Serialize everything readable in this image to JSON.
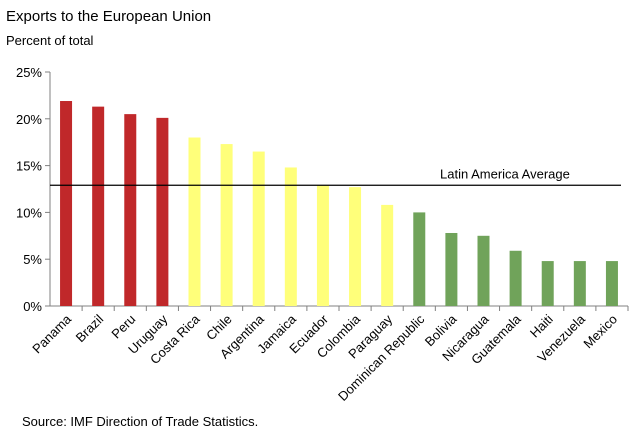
{
  "title": "Exports to the European Union",
  "subtitle": "Percent of total",
  "source": "Source:  IMF Direction of Trade Statistics.",
  "colors": {
    "red": "#c0282a",
    "yellow": "#ffff7a",
    "green": "#70a35a"
  },
  "chart_data": {
    "type": "bar",
    "title": "Exports to the European Union",
    "ylabel": "Percent of total",
    "ylim": [
      0,
      25
    ],
    "yticks": [
      0,
      5,
      10,
      15,
      20,
      25
    ],
    "ytick_labels": [
      "0%",
      "5%",
      "10%",
      "15%",
      "20%",
      "25%"
    ],
    "grid": false,
    "categories": [
      "Panama",
      "Brazil",
      "Peru",
      "Uruguay",
      "Costa Rica",
      "Chile",
      "Argentina",
      "Jamaica",
      "Ecuador",
      "Colombia",
      "Paraguay",
      "Dominican Republic",
      "Bolivia",
      "Nicaragua",
      "Guatemala",
      "Haiti",
      "Venezuela",
      "Mexico"
    ],
    "values": [
      21.9,
      21.3,
      20.5,
      20.1,
      18.0,
      17.3,
      16.5,
      14.8,
      12.9,
      12.7,
      10.8,
      10.0,
      7.8,
      7.5,
      5.9,
      4.8,
      4.8,
      4.8
    ],
    "bar_colors": [
      "red",
      "red",
      "red",
      "red",
      "yellow",
      "yellow",
      "yellow",
      "yellow",
      "yellow",
      "yellow",
      "yellow",
      "green",
      "green",
      "green",
      "green",
      "green",
      "green",
      "green"
    ],
    "reference_line": {
      "label": "Latin America Average",
      "value": 12.9
    }
  }
}
